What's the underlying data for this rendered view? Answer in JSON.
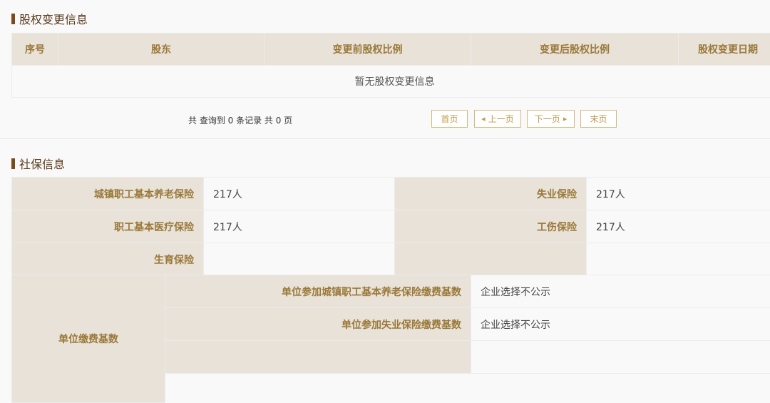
{
  "equity": {
    "title": "股权变更信息",
    "columns": [
      "序号",
      "股东",
      "变更前股权比例",
      "变更后股权比例",
      "股权变更日期"
    ],
    "empty": "暂无股权变更信息",
    "pager": {
      "summary": "共 查询到 0 条记录 共 0 页",
      "first": "首页",
      "prev": "上一页",
      "next": "下一页",
      "last": "末页"
    }
  },
  "social": {
    "title": "社保信息",
    "rows": [
      {
        "l1": "城镇职工基本养老保险",
        "v1": "217人",
        "l2": "失业保险",
        "v2": "217人"
      },
      {
        "l1": "职工基本医疗保险",
        "v1": "217人",
        "l2": "工伤保险",
        "v2": "217人"
      },
      {
        "l1": "生育保险",
        "v1": "",
        "l2": "",
        "v2": ""
      }
    ],
    "base": {
      "label": "单位缴费基数",
      "items": [
        {
          "label": "单位参加城镇职工基本养老保险缴费基数",
          "value": "企业选择不公示"
        },
        {
          "label": "单位参加失业保险缴费基数",
          "value": "企业选择不公示"
        },
        {
          "label": "",
          "value": ""
        }
      ]
    }
  },
  "colors": {
    "header_bg": "#e8e2d9",
    "header_text": "#9a7838",
    "accent": "#7a4a1c",
    "button_border": "#d5b87a"
  }
}
